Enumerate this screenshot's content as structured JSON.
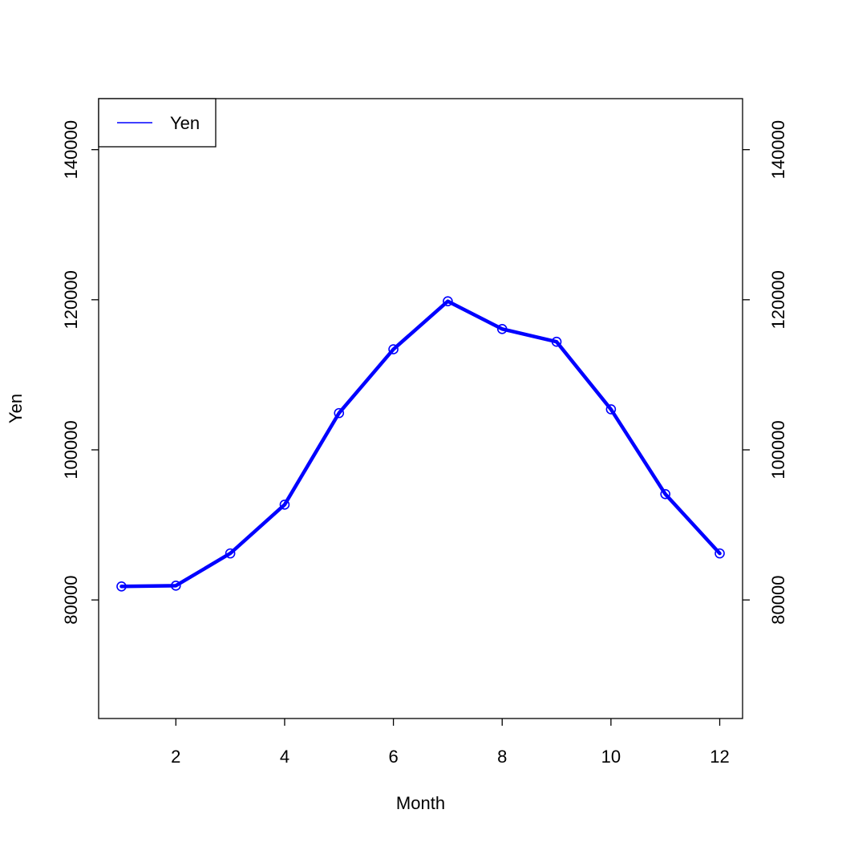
{
  "chart_data": {
    "type": "line",
    "title": "",
    "xlabel": "Month",
    "ylabel": "Yen",
    "xlim": [
      0.58,
      12.42
    ],
    "ylim": [
      64200,
      146800
    ],
    "x_ticks": [
      2,
      4,
      6,
      8,
      10,
      12
    ],
    "y_ticks": [
      80000,
      100000,
      120000,
      140000
    ],
    "y_tick_labels_right": true,
    "grid": false,
    "legend": {
      "position": "top-left",
      "entries": [
        "Yen"
      ]
    },
    "series": [
      {
        "name": "Yen",
        "color": "#0000ff",
        "markers": "open-circle",
        "x": [
          1,
          2,
          3,
          4,
          5,
          6,
          7,
          8,
          9,
          10,
          11,
          12
        ],
        "y": [
          81800,
          81900,
          86200,
          92700,
          104900,
          113400,
          119800,
          116100,
          114400,
          105400,
          94100,
          86200
        ]
      }
    ]
  }
}
